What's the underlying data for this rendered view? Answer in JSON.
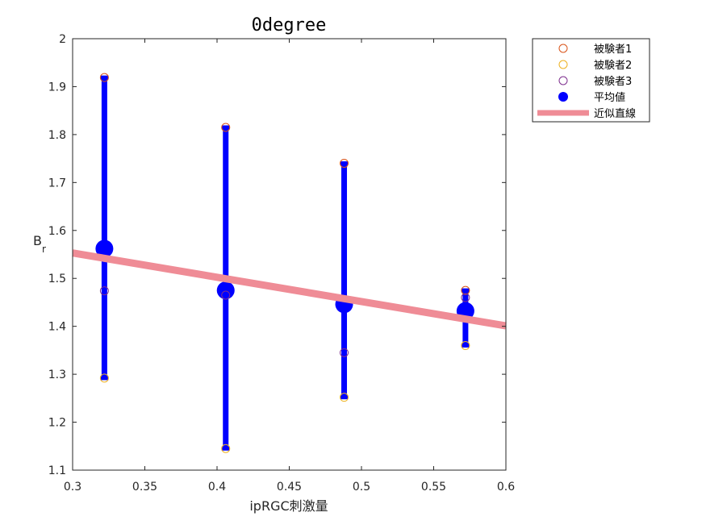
{
  "chart_data": {
    "type": "scatter",
    "title": "0degree",
    "xlabel": "ipRGC刺激量",
    "ylabel_main": "B",
    "ylabel_sub": "r",
    "xlim": [
      0.3,
      0.6
    ],
    "ylim": [
      1.1,
      2.0
    ],
    "xticks": [
      0.3,
      0.35,
      0.4,
      0.45,
      0.5,
      0.55,
      0.6
    ],
    "xtick_labels": [
      "0.3",
      "0.35",
      "0.4",
      "0.45",
      "0.5",
      "0.55",
      "0.6"
    ],
    "yticks": [
      1.1,
      1.2,
      1.3,
      1.4,
      1.5,
      1.6,
      1.7,
      1.8,
      1.9,
      2.0
    ],
    "ytick_labels": [
      "1.1",
      "1.2",
      "1.3",
      "1.4",
      "1.5",
      "1.6",
      "1.7",
      "1.8",
      "1.9",
      "2"
    ],
    "grid": false,
    "legend_position": "outside-top-right",
    "series": [
      {
        "name": "被験者1",
        "marker": "open-circle",
        "color": "#D95319",
        "x": [
          0.322,
          0.406,
          0.488,
          0.572
        ],
        "y": [
          1.919,
          1.815,
          1.74,
          1.475
        ]
      },
      {
        "name": "被験者2",
        "marker": "open-circle",
        "color": "#EDB120",
        "x": [
          0.322,
          0.406,
          0.488,
          0.572
        ],
        "y": [
          1.292,
          1.145,
          1.252,
          1.36
        ]
      },
      {
        "name": "被験者3",
        "marker": "open-circle",
        "color": "#7E2F8E",
        "x": [
          0.322,
          0.406,
          0.488,
          0.572
        ],
        "y": [
          1.474,
          1.465,
          1.345,
          1.46
        ]
      },
      {
        "name": "平均値",
        "marker": "filled-circle",
        "color": "#0000FF",
        "x": [
          0.322,
          0.406,
          0.488,
          0.572
        ],
        "y": [
          1.562,
          1.475,
          1.446,
          1.432
        ],
        "error_low": [
          1.292,
          1.145,
          1.252,
          1.36
        ],
        "error_high": [
          1.919,
          1.815,
          1.74,
          1.475
        ]
      },
      {
        "name": "近似直線",
        "marker": "line",
        "color": "#EF8C96",
        "x": [
          0.3,
          0.6
        ],
        "y": [
          1.553,
          1.401
        ]
      }
    ]
  }
}
